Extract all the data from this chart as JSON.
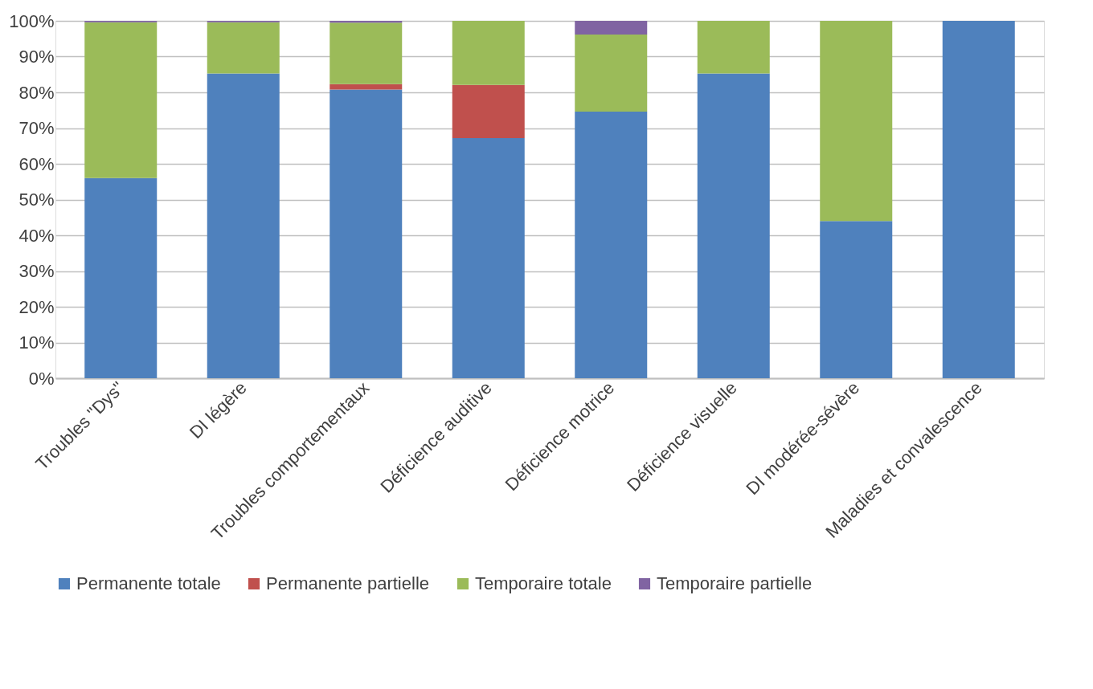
{
  "chart_data": {
    "type": "bar",
    "stacked": true,
    "categories": [
      "Troubles \"Dys\"",
      "DI légère",
      "Troubles comportementaux",
      "Déficience auditive",
      "Déficience motrice",
      "Déficience visuelle",
      "DI modérée-sévère",
      "Maladies et convalescence"
    ],
    "series": [
      {
        "name": "Permanente totale",
        "color": "#4f81bd",
        "values": [
          56,
          85.3,
          80.8,
          67.2,
          74.6,
          85.3,
          44,
          100
        ]
      },
      {
        "name": "Permanente partielle",
        "color": "#c0504d",
        "values": [
          0,
          0,
          1.5,
          14.9,
          0,
          0,
          0,
          0
        ]
      },
      {
        "name": "Temporaire totale",
        "color": "#9bbb59",
        "values": [
          43.6,
          14.3,
          17.2,
          17.9,
          21.6,
          14.7,
          56,
          0
        ]
      },
      {
        "name": "Temporaire partielle",
        "color": "#8064a2",
        "values": [
          0.4,
          0.4,
          0.5,
          0,
          3.8,
          0,
          0,
          0
        ]
      }
    ],
    "ylim": [
      0,
      100
    ],
    "yticks": [
      {
        "value": 0,
        "label": "0%"
      },
      {
        "value": 10,
        "label": "10%"
      },
      {
        "value": 20,
        "label": "20%"
      },
      {
        "value": 30,
        "label": "30%"
      },
      {
        "value": 40,
        "label": "40%"
      },
      {
        "value": 50,
        "label": "50%"
      },
      {
        "value": 60,
        "label": "60%"
      },
      {
        "value": 70,
        "label": "70%"
      },
      {
        "value": 80,
        "label": "80%"
      },
      {
        "value": 90,
        "label": "90%"
      },
      {
        "value": 100,
        "label": "100%"
      }
    ],
    "grid": "y",
    "legend": "bottom"
  }
}
